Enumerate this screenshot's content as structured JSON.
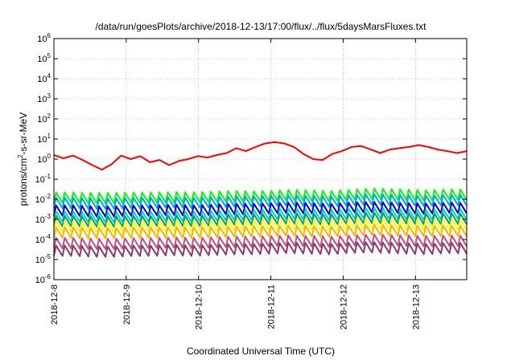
{
  "chart_data": {
    "type": "line",
    "title": "/data/run/goesPlots/archive/2018-12-13/17:00/flux/../flux/5daysMarsFluxes.txt",
    "xlabel": "Coordinated Universal Time (UTC)",
    "ylabel_main": "protons/cm",
    "ylabel_sup": "2",
    "ylabel_tail": "-s-sr-MeV",
    "yscale": "log",
    "ylim_exp": [
      -6,
      6
    ],
    "y_ticks": [
      {
        "base": "10",
        "exp": "-6"
      },
      {
        "base": "10",
        "exp": "-5"
      },
      {
        "base": "10",
        "exp": "-4"
      },
      {
        "base": "10",
        "exp": "-3"
      },
      {
        "base": "10",
        "exp": "-2"
      },
      {
        "base": "10",
        "exp": "-1"
      },
      {
        "base": "10",
        "exp": "0"
      },
      {
        "base": "10",
        "exp": "1"
      },
      {
        "base": "10",
        "exp": "2"
      },
      {
        "base": "10",
        "exp": "3"
      },
      {
        "base": "10",
        "exp": "4"
      },
      {
        "base": "10",
        "exp": "5"
      },
      {
        "base": "10",
        "exp": "6"
      }
    ],
    "x_range": [
      "2018-12-08T00:00",
      "2018-12-13T17:00"
    ],
    "x_ticks": [
      "2018-12-8",
      "2018-12-9",
      "2018-12-10",
      "2018-12-11",
      "2018-12-12",
      "2018-12-13"
    ],
    "grid": true,
    "series": [
      {
        "color": "#ff0000",
        "sawtooth": false,
        "values": [
          1.6,
          1.1,
          1.5,
          0.9,
          0.5,
          0.3,
          0.55,
          1.5,
          1.0,
          1.4,
          0.7,
          0.9,
          0.5,
          0.8,
          1.0,
          1.4,
          1.2,
          1.6,
          2.0,
          3.5,
          2.5,
          4.0,
          6.0,
          7.0,
          6.0,
          4.0,
          1.8,
          1.0,
          0.9,
          1.8,
          2.5,
          4.0,
          4.5,
          3.0,
          2.0,
          3.0,
          3.5,
          4.0,
          5.0,
          4.0,
          3.0,
          2.5,
          2.0,
          2.5
        ]
      },
      {
        "color": "#00ff00",
        "sawtooth": true,
        "values": [
          0.022,
          0.022,
          0.021,
          0.021,
          0.022,
          0.022,
          0.023,
          0.022,
          0.024,
          0.026,
          0.025,
          0.027,
          0.03,
          0.028,
          0.026,
          0.03,
          0.035,
          0.033,
          0.03,
          0.028,
          0.032,
          0.03
        ]
      },
      {
        "color": "#00a0ff",
        "sawtooth": true,
        "values": [
          0.012,
          0.012,
          0.011,
          0.011,
          0.012,
          0.012,
          0.013,
          0.012,
          0.013,
          0.014,
          0.014,
          0.015,
          0.016,
          0.015,
          0.014,
          0.016,
          0.018,
          0.017,
          0.016,
          0.015,
          0.017,
          0.016
        ]
      },
      {
        "color": "#0000cc",
        "sawtooth": true,
        "values": [
          0.005,
          0.005,
          0.0045,
          0.0045,
          0.005,
          0.005,
          0.0055,
          0.005,
          0.0055,
          0.006,
          0.006,
          0.0065,
          0.007,
          0.0065,
          0.006,
          0.007,
          0.0075,
          0.007,
          0.0065,
          0.0062,
          0.007,
          0.0065
        ]
      },
      {
        "color": "#00d0d0",
        "sawtooth": true,
        "values": [
          0.0025,
          0.0025,
          0.0023,
          0.0023,
          0.0025,
          0.0025,
          0.0027,
          0.0025,
          0.0027,
          0.003,
          0.003,
          0.0032,
          0.0035,
          0.0032,
          0.003,
          0.0035,
          0.0038,
          0.0035,
          0.0032,
          0.003,
          0.0035,
          0.0032
        ]
      },
      {
        "color": "#00a060",
        "sawtooth": true,
        "values": [
          0.0015,
          0.0015,
          0.0014,
          0.0014,
          0.0015,
          0.0015,
          0.0016,
          0.0015,
          0.0016,
          0.0018,
          0.0018,
          0.0019,
          0.002,
          0.0019,
          0.0018,
          0.002,
          0.0022,
          0.0021,
          0.002,
          0.0019,
          0.002,
          0.0019
        ]
      },
      {
        "color": "#ffff00",
        "sawtooth": true,
        "values": [
          0.0008,
          0.0008,
          0.00075,
          0.00075,
          0.0008,
          0.0008,
          0.00085,
          0.0008,
          0.00085,
          0.0009,
          0.0009,
          0.00095,
          0.001,
          0.00095,
          0.0009,
          0.001,
          0.0011,
          0.00105,
          0.001,
          0.00095,
          0.001,
          0.00095
        ]
      },
      {
        "color": "#ffb000",
        "sawtooth": true,
        "values": [
          0.0004,
          0.0004,
          0.00038,
          0.00038,
          0.0004,
          0.0004,
          0.00042,
          0.0004,
          0.00042,
          0.00045,
          0.00045,
          0.00047,
          0.0005,
          0.00047,
          0.00045,
          0.0005,
          0.00055,
          0.00052,
          0.0005,
          0.00047,
          0.0005,
          0.00047
        ]
      },
      {
        "color": "#c05080",
        "sawtooth": true,
        "values": [
          0.00012,
          0.00012,
          0.00011,
          0.00011,
          0.00012,
          0.00012,
          0.00013,
          0.00012,
          0.00013,
          0.00014,
          0.00014,
          0.00015,
          0.00016,
          0.00015,
          0.00014,
          0.00016,
          0.00018,
          0.00017,
          0.00016,
          0.00015,
          0.00016,
          0.00015
        ]
      },
      {
        "color": "#8b3a6b",
        "sawtooth": true,
        "values": [
          5e-05,
          5e-05,
          4.5e-05,
          4.5e-05,
          5e-05,
          5e-05,
          5.5e-05,
          5e-05,
          5.5e-05,
          6e-05,
          6e-05,
          6.5e-05,
          7e-05,
          6.5e-05,
          6e-05,
          7e-05,
          7.5e-05,
          7e-05,
          6.5e-05,
          6e-05,
          7e-05,
          6.5e-05
        ]
      }
    ]
  }
}
